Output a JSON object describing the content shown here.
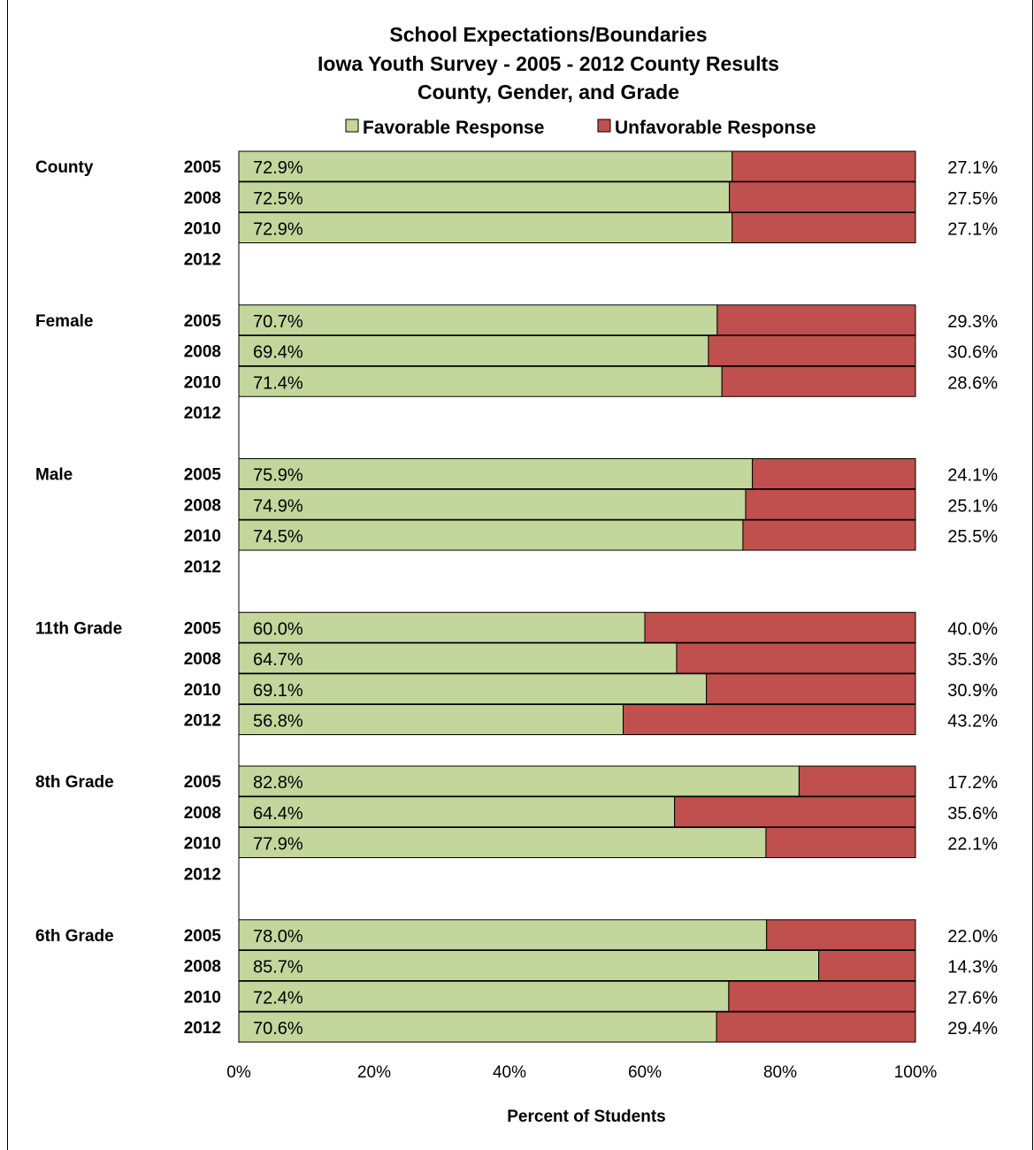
{
  "chart_data": {
    "type": "bar",
    "stacked": true,
    "orientation": "horizontal",
    "title_lines": [
      "School Expectations/Boundaries",
      "Iowa Youth Survey - 2005 - 2012 County Results",
      "County, Gender, and Grade"
    ],
    "xlabel": "Percent of Students",
    "xlim": [
      0,
      100
    ],
    "x_ticks": [
      "0%",
      "20%",
      "40%",
      "60%",
      "80%",
      "100%"
    ],
    "legend_position": "top",
    "series": [
      {
        "name": "Favorable Response",
        "color": "#c3d69b"
      },
      {
        "name": "Unfavorable Response",
        "color": "#c0504d"
      }
    ],
    "groups": [
      {
        "label": "County",
        "rows": [
          {
            "year": "2005",
            "favorable": 72.9,
            "unfavorable": 27.1,
            "fav_label": "72.9%",
            "unfav_label": "27.1%"
          },
          {
            "year": "2008",
            "favorable": 72.5,
            "unfavorable": 27.5,
            "fav_label": "72.5%",
            "unfav_label": "27.5%"
          },
          {
            "year": "2010",
            "favorable": 72.9,
            "unfavorable": 27.1,
            "fav_label": "72.9%",
            "unfav_label": "27.1%"
          },
          {
            "year": "2012",
            "favorable": null,
            "unfavorable": null,
            "fav_label": "",
            "unfav_label": ""
          }
        ]
      },
      {
        "label": "Female",
        "rows": [
          {
            "year": "2005",
            "favorable": 70.7,
            "unfavorable": 29.3,
            "fav_label": "70.7%",
            "unfav_label": "29.3%"
          },
          {
            "year": "2008",
            "favorable": 69.4,
            "unfavorable": 30.6,
            "fav_label": "69.4%",
            "unfav_label": "30.6%"
          },
          {
            "year": "2010",
            "favorable": 71.4,
            "unfavorable": 28.6,
            "fav_label": "71.4%",
            "unfav_label": "28.6%"
          },
          {
            "year": "2012",
            "favorable": null,
            "unfavorable": null,
            "fav_label": "",
            "unfav_label": ""
          }
        ]
      },
      {
        "label": "Male",
        "rows": [
          {
            "year": "2005",
            "favorable": 75.9,
            "unfavorable": 24.1,
            "fav_label": "75.9%",
            "unfav_label": "24.1%"
          },
          {
            "year": "2008",
            "favorable": 74.9,
            "unfavorable": 25.1,
            "fav_label": "74.9%",
            "unfav_label": "25.1%"
          },
          {
            "year": "2010",
            "favorable": 74.5,
            "unfavorable": 25.5,
            "fav_label": "74.5%",
            "unfav_label": "25.5%"
          },
          {
            "year": "2012",
            "favorable": null,
            "unfavorable": null,
            "fav_label": "",
            "unfav_label": ""
          }
        ]
      },
      {
        "label": "11th Grade",
        "rows": [
          {
            "year": "2005",
            "favorable": 60.0,
            "unfavorable": 40.0,
            "fav_label": "60.0%",
            "unfav_label": "40.0%"
          },
          {
            "year": "2008",
            "favorable": 64.7,
            "unfavorable": 35.3,
            "fav_label": "64.7%",
            "unfav_label": "35.3%"
          },
          {
            "year": "2010",
            "favorable": 69.1,
            "unfavorable": 30.9,
            "fav_label": "69.1%",
            "unfav_label": "30.9%"
          },
          {
            "year": "2012",
            "favorable": 56.8,
            "unfavorable": 43.2,
            "fav_label": "56.8%",
            "unfav_label": "43.2%"
          }
        ]
      },
      {
        "label": "8th Grade",
        "rows": [
          {
            "year": "2005",
            "favorable": 82.8,
            "unfavorable": 17.2,
            "fav_label": "82.8%",
            "unfav_label": "17.2%"
          },
          {
            "year": "2008",
            "favorable": 64.4,
            "unfavorable": 35.6,
            "fav_label": "64.4%",
            "unfav_label": "35.6%"
          },
          {
            "year": "2010",
            "favorable": 77.9,
            "unfavorable": 22.1,
            "fav_label": "77.9%",
            "unfav_label": "22.1%"
          },
          {
            "year": "2012",
            "favorable": null,
            "unfavorable": null,
            "fav_label": "",
            "unfav_label": ""
          }
        ]
      },
      {
        "label": "6th Grade",
        "rows": [
          {
            "year": "2005",
            "favorable": 78.0,
            "unfavorable": 22.0,
            "fav_label": "78.0%",
            "unfav_label": "22.0%"
          },
          {
            "year": "2008",
            "favorable": 85.7,
            "unfavorable": 14.3,
            "fav_label": "85.7%",
            "unfav_label": "14.3%"
          },
          {
            "year": "2010",
            "favorable": 72.4,
            "unfavorable": 27.6,
            "fav_label": "72.4%",
            "unfav_label": "27.6%"
          },
          {
            "year": "2012",
            "favorable": 70.6,
            "unfavorable": 29.4,
            "fav_label": "70.6%",
            "unfav_label": "29.4%"
          }
        ]
      }
    ]
  }
}
